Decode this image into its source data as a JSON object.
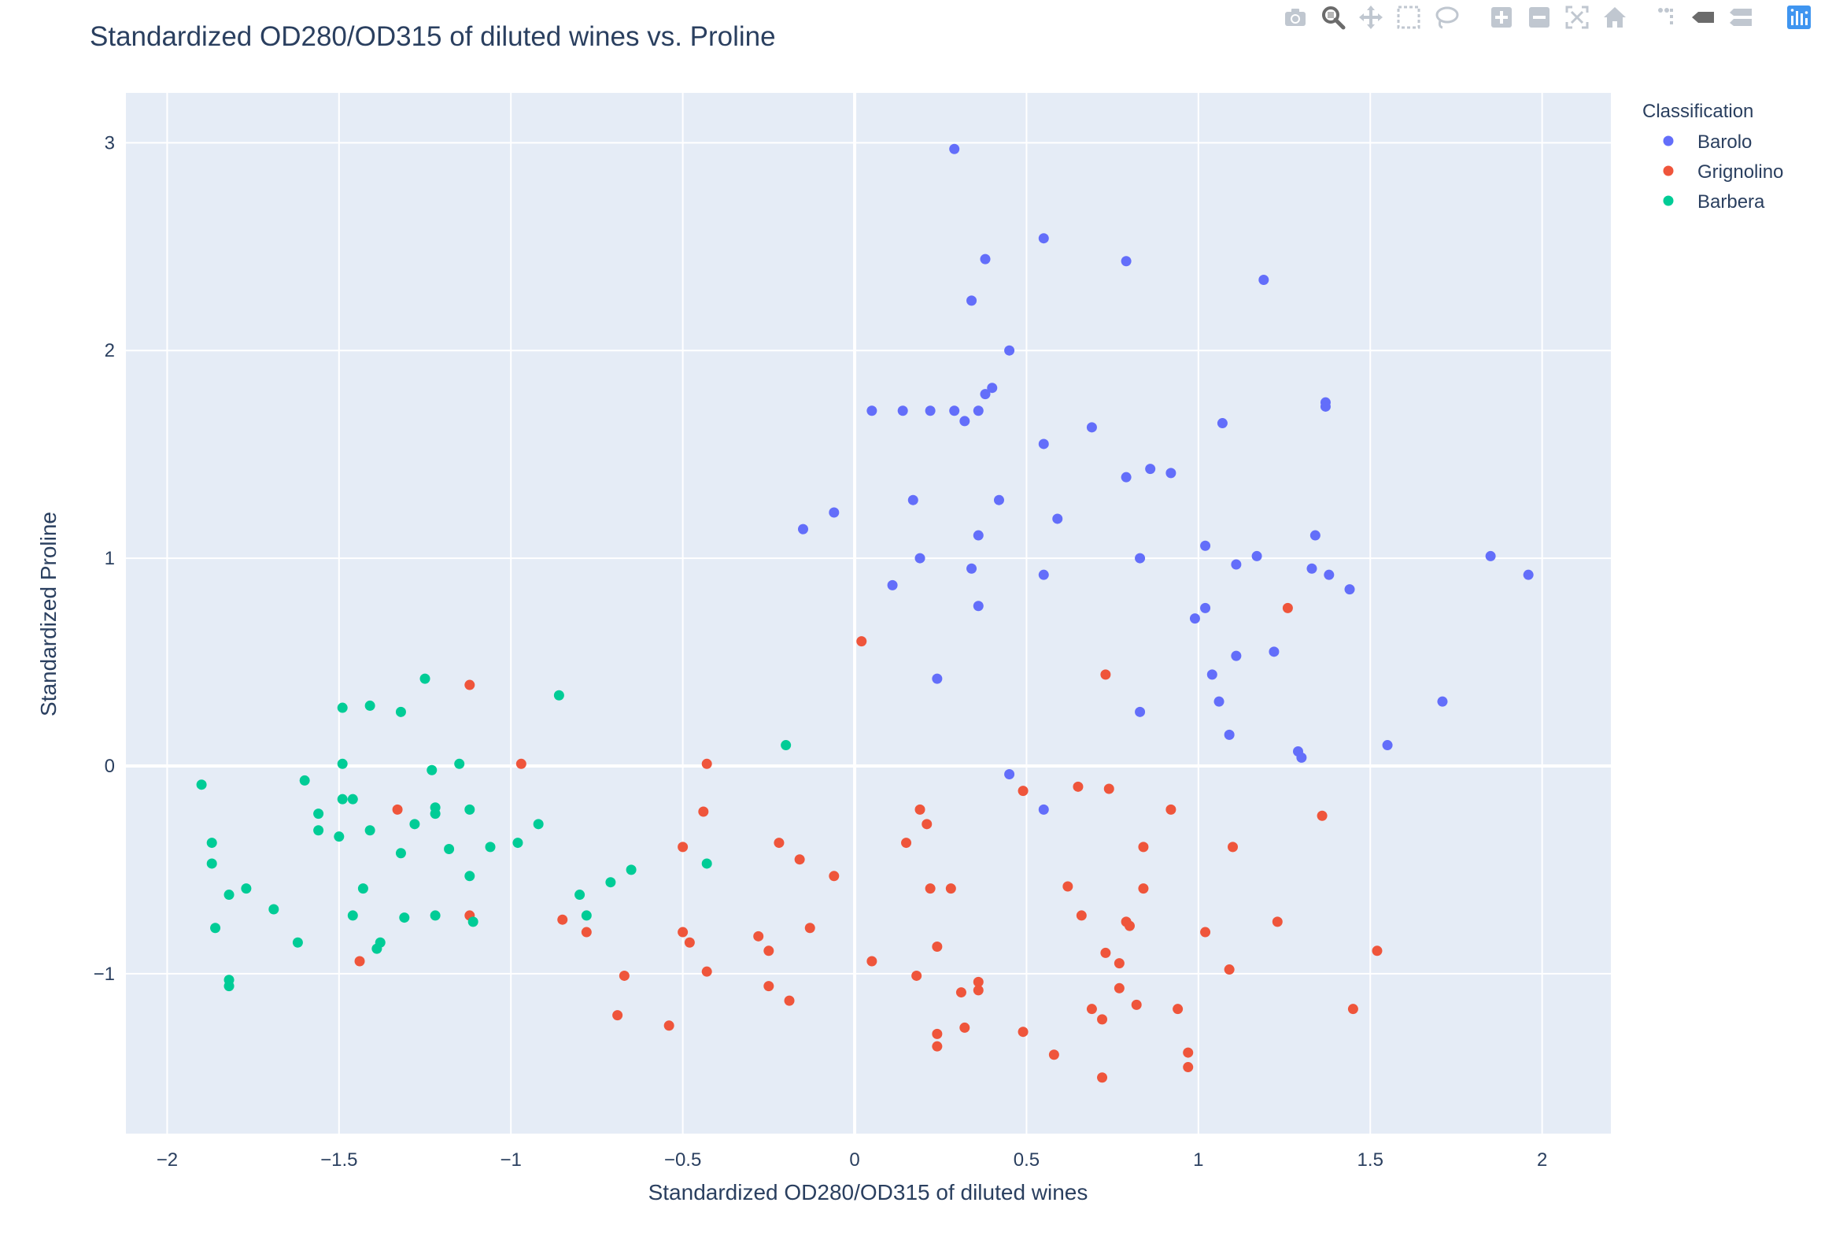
{
  "toolbar": {
    "buttons": [
      {
        "name": "camera-icon",
        "title": "Download plot as a png"
      },
      {
        "name": "zoom-icon",
        "title": "Zoom"
      },
      {
        "name": "pan-icon",
        "title": "Pan"
      },
      {
        "name": "box-select-icon",
        "title": "Box Select"
      },
      {
        "name": "lasso-select-icon",
        "title": "Lasso Select"
      },
      {
        "name": "zoom-in-icon",
        "title": "Zoom in"
      },
      {
        "name": "zoom-out-icon",
        "title": "Zoom out"
      },
      {
        "name": "autoscale-icon",
        "title": "Autoscale"
      },
      {
        "name": "home-icon",
        "title": "Reset axes"
      },
      {
        "name": "spike-lines-icon",
        "title": "Toggle Spike Lines"
      },
      {
        "name": "hover-closest-icon",
        "title": "Show closest data on hover"
      },
      {
        "name": "hover-compare-icon",
        "title": "Compare data on hover"
      },
      {
        "name": "plotly-logo-icon",
        "title": "Produced with Plotly"
      }
    ]
  },
  "colors": {
    "plot_bg": "#e5ecf6",
    "grid": "#ffffff",
    "text": "#2a3f5f",
    "modebar_icon": "#c0c7d0",
    "modebar_active": "#6b6b6b",
    "plotly_blue": "#3f95f0"
  },
  "chart_data": {
    "type": "scatter",
    "title": "Standardized OD280/OD315 of diluted wines vs. Proline",
    "xlabel": "Standardized OD280/OD315 of diluted wines",
    "ylabel": "Standardized Proline",
    "xlim": [
      -2.12,
      2.2
    ],
    "ylim": [
      -1.77,
      3.24
    ],
    "xticks": [
      -2,
      -1.5,
      -1,
      -0.5,
      0,
      0.5,
      1,
      1.5,
      2
    ],
    "xtick_labels": [
      "−2",
      "−1.5",
      "−1",
      "−0.5",
      "0",
      "0.5",
      "1",
      "1.5",
      "2"
    ],
    "yticks": [
      -1,
      0,
      1,
      2,
      3
    ],
    "ytick_labels": [
      "−1",
      "0",
      "1",
      "2",
      "3"
    ],
    "grid": true,
    "legend": {
      "title": "Classification",
      "placement": "top-right outside"
    },
    "series": [
      {
        "name": "Barolo",
        "color": "#636efa",
        "points": [
          [
            0.29,
            2.97
          ],
          [
            0.55,
            2.54
          ],
          [
            0.38,
            2.44
          ],
          [
            0.79,
            2.43
          ],
          [
            1.19,
            2.34
          ],
          [
            0.34,
            2.24
          ],
          [
            0.45,
            2.0
          ],
          [
            0.4,
            1.82
          ],
          [
            0.38,
            1.79
          ],
          [
            0.05,
            1.71
          ],
          [
            0.14,
            1.71
          ],
          [
            0.22,
            1.71
          ],
          [
            0.29,
            1.71
          ],
          [
            0.36,
            1.71
          ],
          [
            1.37,
            1.75
          ],
          [
            1.37,
            1.73
          ],
          [
            0.32,
            1.66
          ],
          [
            0.69,
            1.63
          ],
          [
            1.07,
            1.65
          ],
          [
            0.55,
            1.55
          ],
          [
            0.86,
            1.43
          ],
          [
            0.92,
            1.41
          ],
          [
            0.79,
            1.39
          ],
          [
            0.17,
            1.28
          ],
          [
            0.42,
            1.28
          ],
          [
            -0.06,
            1.22
          ],
          [
            0.59,
            1.19
          ],
          [
            -0.15,
            1.14
          ],
          [
            0.36,
            1.11
          ],
          [
            1.34,
            1.11
          ],
          [
            1.02,
            1.06
          ],
          [
            1.85,
            1.01
          ],
          [
            1.17,
            1.01
          ],
          [
            0.19,
            1.0
          ],
          [
            0.83,
            1.0
          ],
          [
            1.11,
            0.97
          ],
          [
            0.34,
            0.95
          ],
          [
            1.33,
            0.95
          ],
          [
            0.55,
            0.92
          ],
          [
            1.38,
            0.92
          ],
          [
            1.96,
            0.92
          ],
          [
            0.11,
            0.87
          ],
          [
            1.44,
            0.85
          ],
          [
            0.36,
            0.77
          ],
          [
            1.02,
            0.76
          ],
          [
            0.99,
            0.71
          ],
          [
            1.22,
            0.55
          ],
          [
            1.11,
            0.53
          ],
          [
            1.04,
            0.44
          ],
          [
            0.24,
            0.42
          ],
          [
            1.06,
            0.31
          ],
          [
            1.71,
            0.31
          ],
          [
            0.83,
            0.26
          ],
          [
            1.09,
            0.15
          ],
          [
            1.55,
            0.1
          ],
          [
            1.29,
            0.07
          ],
          [
            1.3,
            0.04
          ],
          [
            0.45,
            -0.04
          ],
          [
            0.55,
            -0.21
          ]
        ]
      },
      {
        "name": "Grignolino",
        "color": "#ef553b",
        "points": [
          [
            1.26,
            0.76
          ],
          [
            0.02,
            0.6
          ],
          [
            0.73,
            0.44
          ],
          [
            -1.12,
            0.39
          ],
          [
            -0.97,
            0.01
          ],
          [
            -0.43,
            0.01
          ],
          [
            0.65,
            -0.1
          ],
          [
            0.74,
            -0.11
          ],
          [
            0.49,
            -0.12
          ],
          [
            -1.33,
            -0.21
          ],
          [
            0.19,
            -0.21
          ],
          [
            0.92,
            -0.21
          ],
          [
            -0.44,
            -0.22
          ],
          [
            1.36,
            -0.24
          ],
          [
            0.21,
            -0.28
          ],
          [
            -0.22,
            -0.37
          ],
          [
            0.15,
            -0.37
          ],
          [
            1.1,
            -0.39
          ],
          [
            -0.5,
            -0.39
          ],
          [
            0.84,
            -0.39
          ],
          [
            -0.16,
            -0.45
          ],
          [
            -0.06,
            -0.53
          ],
          [
            0.62,
            -0.58
          ],
          [
            0.22,
            -0.59
          ],
          [
            0.28,
            -0.59
          ],
          [
            0.84,
            -0.59
          ],
          [
            0.66,
            -0.72
          ],
          [
            -1.12,
            -0.72
          ],
          [
            -0.85,
            -0.74
          ],
          [
            0.79,
            -0.75
          ],
          [
            0.8,
            -0.77
          ],
          [
            1.23,
            -0.75
          ],
          [
            -0.13,
            -0.78
          ],
          [
            -0.78,
            -0.8
          ],
          [
            1.02,
            -0.8
          ],
          [
            -0.5,
            -0.8
          ],
          [
            -0.28,
            -0.82
          ],
          [
            -0.48,
            -0.85
          ],
          [
            0.24,
            -0.87
          ],
          [
            -0.25,
            -0.89
          ],
          [
            0.73,
            -0.9
          ],
          [
            1.52,
            -0.89
          ],
          [
            -1.44,
            -0.94
          ],
          [
            0.05,
            -0.94
          ],
          [
            0.77,
            -0.95
          ],
          [
            1.09,
            -0.98
          ],
          [
            -0.43,
            -0.99
          ],
          [
            -0.67,
            -1.01
          ],
          [
            0.18,
            -1.01
          ],
          [
            0.36,
            -1.04
          ],
          [
            -0.25,
            -1.06
          ],
          [
            0.77,
            -1.07
          ],
          [
            0.36,
            -1.08
          ],
          [
            0.31,
            -1.09
          ],
          [
            -0.19,
            -1.13
          ],
          [
            0.82,
            -1.15
          ],
          [
            0.69,
            -1.17
          ],
          [
            0.94,
            -1.17
          ],
          [
            1.45,
            -1.17
          ],
          [
            -0.69,
            -1.2
          ],
          [
            0.72,
            -1.22
          ],
          [
            -0.54,
            -1.25
          ],
          [
            0.32,
            -1.26
          ],
          [
            0.49,
            -1.28
          ],
          [
            0.24,
            -1.29
          ],
          [
            0.24,
            -1.35
          ],
          [
            0.58,
            -1.39
          ],
          [
            0.97,
            -1.38
          ],
          [
            0.97,
            -1.45
          ],
          [
            0.72,
            -1.5
          ]
        ]
      },
      {
        "name": "Barbera",
        "color": "#00cc96",
        "points": [
          [
            -1.25,
            0.42
          ],
          [
            -0.86,
            0.34
          ],
          [
            -1.41,
            0.29
          ],
          [
            -1.49,
            0.28
          ],
          [
            -1.32,
            0.26
          ],
          [
            -0.2,
            0.1
          ],
          [
            -1.49,
            0.01
          ],
          [
            -1.15,
            0.01
          ],
          [
            -1.23,
            -0.02
          ],
          [
            -1.6,
            -0.07
          ],
          [
            -1.9,
            -0.09
          ],
          [
            -1.49,
            -0.16
          ],
          [
            -1.46,
            -0.16
          ],
          [
            -1.22,
            -0.2
          ],
          [
            -1.12,
            -0.21
          ],
          [
            -1.22,
            -0.23
          ],
          [
            -1.56,
            -0.23
          ],
          [
            -0.92,
            -0.28
          ],
          [
            -1.28,
            -0.28
          ],
          [
            -1.41,
            -0.31
          ],
          [
            -1.56,
            -0.31
          ],
          [
            -1.5,
            -0.34
          ],
          [
            -0.98,
            -0.37
          ],
          [
            -1.87,
            -0.37
          ],
          [
            -1.06,
            -0.39
          ],
          [
            -1.18,
            -0.4
          ],
          [
            -1.32,
            -0.42
          ],
          [
            -0.43,
            -0.47
          ],
          [
            -1.87,
            -0.47
          ],
          [
            -0.65,
            -0.5
          ],
          [
            -1.12,
            -0.53
          ],
          [
            -0.71,
            -0.56
          ],
          [
            -1.43,
            -0.59
          ],
          [
            -1.77,
            -0.59
          ],
          [
            -1.82,
            -0.62
          ],
          [
            -0.8,
            -0.62
          ],
          [
            -1.69,
            -0.69
          ],
          [
            -1.22,
            -0.72
          ],
          [
            -0.78,
            -0.72
          ],
          [
            -1.46,
            -0.72
          ],
          [
            -1.31,
            -0.73
          ],
          [
            -1.11,
            -0.75
          ],
          [
            -1.86,
            -0.78
          ],
          [
            -1.62,
            -0.85
          ],
          [
            -1.38,
            -0.85
          ],
          [
            -1.39,
            -0.88
          ],
          [
            -1.82,
            -1.03
          ],
          [
            -1.82,
            -1.06
          ]
        ]
      }
    ]
  }
}
